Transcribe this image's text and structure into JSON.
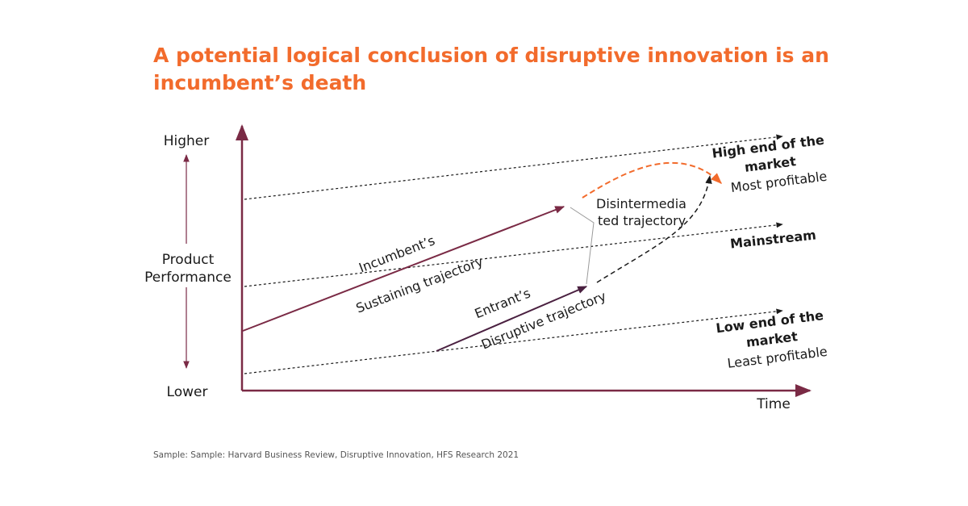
{
  "title": "A potential logical conclusion of disruptive innovation is an incumbent’s death",
  "source": "Sample: Sample: Harvard Business Review, Disruptive Innovation, HFS Research 2021",
  "axes": {
    "y_top": "Higher",
    "y_mid_line1": "Product",
    "y_mid_line2": "Performance",
    "y_bottom": "Lower",
    "x": "Time"
  },
  "segments": {
    "high": {
      "line1": "High end of the",
      "line2": "market",
      "sub": "Most profitable"
    },
    "mainstream": {
      "label": "Mainstream"
    },
    "low": {
      "line1": "Low end of the",
      "line2": "market",
      "sub": "Least profitable"
    }
  },
  "trajectories": {
    "incumbent": {
      "line1": "Incumbent’s",
      "line2": "Sustaining trajectory"
    },
    "entrant": {
      "line1": "Entrant’s",
      "line2": "Disruptive trajectory"
    },
    "disintermediated": {
      "line1": "Disintermedia",
      "line2": "ted trajectory"
    }
  },
  "colors": {
    "title": "#f26b2c",
    "axis": "#7a2a45",
    "incumbent_arrow": "#7a2a45",
    "entrant_arrow": "#4a2040",
    "disintermediated_arrow": "#f26b2c",
    "text": "#1a1a1a"
  }
}
